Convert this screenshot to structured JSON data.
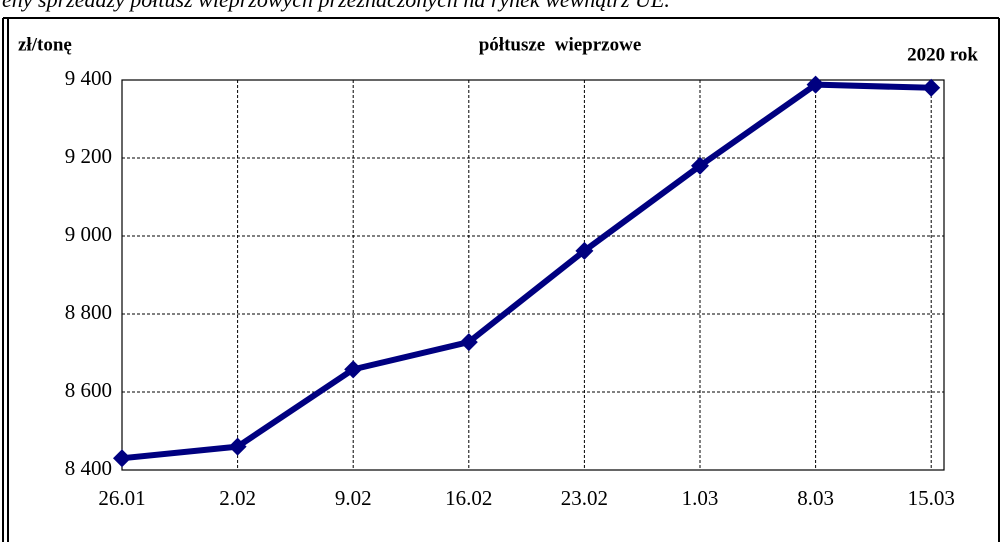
{
  "chart_data": {
    "type": "line",
    "caption": "eny sprzedaży półtusz wieprzowych przeznaczonych na rynek wewnątrz UE.",
    "title": "półtusze  wieprzowe",
    "y_label": "zł/tonę",
    "annotation": "2020 rok",
    "categories": [
      "26.01",
      "2.02",
      "9.02",
      "16.02",
      "23.02",
      "1.03",
      "8.03",
      "15.03"
    ],
    "series": [
      {
        "name": "półtusze wieprzowe",
        "color": "#000080",
        "values": [
          8430,
          8460,
          8658,
          8728,
          8962,
          9180,
          9388,
          9380
        ]
      }
    ],
    "ylim": [
      8400,
      9400
    ],
    "yticks": [
      {
        "value": 8400,
        "label": "8 400"
      },
      {
        "value": 8600,
        "label": "8 600"
      },
      {
        "value": 8800,
        "label": "8 800"
      },
      {
        "value": 9000,
        "label": "9 000"
      },
      {
        "value": 9200,
        "label": "9 200"
      },
      {
        "value": 9400,
        "label": "9 400"
      }
    ],
    "grid": true
  }
}
